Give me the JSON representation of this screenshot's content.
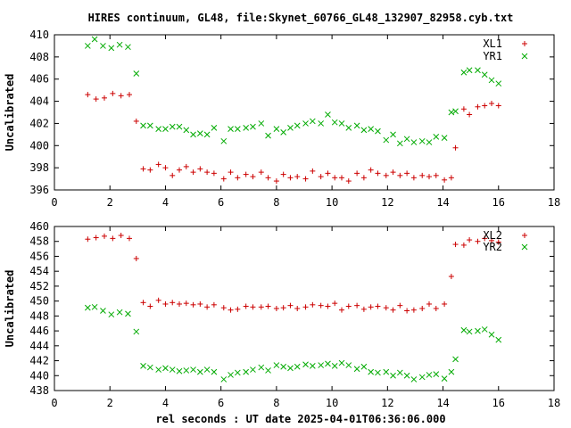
{
  "title": "HIRES continuum, GL48, file:Skynet_60766_GL48_132907_82958.cyb.txt",
  "xlabel": "rel seconds : UT date 2025-04-01T06:36:06.000",
  "chart_data": [
    {
      "type": "scatter",
      "ylabel": "Uncalibrated",
      "xlim": [
        0,
        18
      ],
      "ylim": [
        396,
        410
      ],
      "xticks": [
        0,
        2,
        4,
        6,
        8,
        10,
        12,
        14,
        16,
        18
      ],
      "yticks": [
        396,
        398,
        400,
        402,
        404,
        406,
        408,
        410
      ],
      "legend_position": "top-right",
      "series": [
        {
          "name": "XL1",
          "color": "#cc0000",
          "marker": "plus",
          "x": [
            1.2,
            1.5,
            1.8,
            2.1,
            2.4,
            2.7,
            2.95,
            3.2,
            3.45,
            3.75,
            4.0,
            4.25,
            4.5,
            4.75,
            5.0,
            5.25,
            5.5,
            5.75,
            6.1,
            6.35,
            6.6,
            6.9,
            7.15,
            7.45,
            7.7,
            8.0,
            8.25,
            8.5,
            8.75,
            9.05,
            9.3,
            9.6,
            9.85,
            10.1,
            10.35,
            10.6,
            10.9,
            11.15,
            11.4,
            11.65,
            11.95,
            12.2,
            12.45,
            12.7,
            12.95,
            13.25,
            13.5,
            13.75,
            14.05,
            14.3,
            14.45,
            14.75,
            14.95,
            15.25,
            15.5,
            15.75,
            16.0
          ],
          "y": [
            404.6,
            404.2,
            404.3,
            404.7,
            404.5,
            404.6,
            402.2,
            397.9,
            397.8,
            398.3,
            398.0,
            397.3,
            397.8,
            398.1,
            397.6,
            397.9,
            397.6,
            397.5,
            397.0,
            397.6,
            397.1,
            397.4,
            397.2,
            397.6,
            397.1,
            396.8,
            397.4,
            397.1,
            397.2,
            397.0,
            397.7,
            397.2,
            397.5,
            397.1,
            397.1,
            396.8,
            397.5,
            397.1,
            397.8,
            397.5,
            397.3,
            397.6,
            397.3,
            397.5,
            397.1,
            397.3,
            397.2,
            397.3,
            396.9,
            397.1,
            399.8,
            403.3,
            402.8,
            403.5,
            403.6,
            403.8,
            403.6
          ]
        },
        {
          "name": "YR1",
          "color": "#00aa00",
          "marker": "cross",
          "x": [
            1.2,
            1.45,
            1.75,
            2.05,
            2.35,
            2.65,
            2.95,
            3.2,
            3.45,
            3.75,
            4.0,
            4.25,
            4.5,
            4.75,
            5.0,
            5.25,
            5.5,
            5.75,
            6.1,
            6.35,
            6.6,
            6.9,
            7.15,
            7.45,
            7.7,
            8.0,
            8.25,
            8.5,
            8.75,
            9.05,
            9.3,
            9.6,
            9.85,
            10.1,
            10.35,
            10.6,
            10.9,
            11.15,
            11.4,
            11.65,
            11.95,
            12.2,
            12.45,
            12.7,
            12.95,
            13.25,
            13.5,
            13.75,
            14.05,
            14.3,
            14.45,
            14.75,
            14.95,
            15.25,
            15.5,
            15.75,
            16.0
          ],
          "y": [
            409.0,
            409.6,
            409.0,
            408.8,
            409.1,
            408.9,
            406.5,
            401.8,
            401.8,
            401.5,
            401.5,
            401.7,
            401.7,
            401.4,
            401.0,
            401.1,
            401.0,
            401.6,
            400.4,
            401.5,
            401.5,
            401.6,
            401.7,
            402.0,
            400.9,
            401.5,
            401.2,
            401.6,
            401.8,
            402.0,
            402.2,
            402.0,
            402.8,
            402.1,
            402.0,
            401.6,
            401.8,
            401.4,
            401.5,
            401.3,
            400.5,
            401.0,
            400.2,
            400.6,
            400.3,
            400.4,
            400.3,
            400.8,
            400.7,
            403.0,
            403.1,
            406.6,
            406.8,
            406.8,
            406.4,
            405.9,
            405.6
          ]
        }
      ]
    },
    {
      "type": "scatter",
      "ylabel": "Uncalibrated",
      "xlim": [
        0,
        18
      ],
      "ylim": [
        438,
        460
      ],
      "xticks": [
        0,
        2,
        4,
        6,
        8,
        10,
        12,
        14,
        16,
        18
      ],
      "yticks": [
        438,
        440,
        442,
        444,
        446,
        448,
        450,
        452,
        454,
        456,
        458,
        460
      ],
      "legend_position": "top-right",
      "series": [
        {
          "name": "XL2",
          "color": "#cc0000",
          "marker": "plus",
          "x": [
            1.2,
            1.5,
            1.8,
            2.1,
            2.4,
            2.7,
            2.95,
            3.2,
            3.45,
            3.75,
            4.0,
            4.25,
            4.5,
            4.75,
            5.0,
            5.25,
            5.5,
            5.75,
            6.1,
            6.35,
            6.6,
            6.9,
            7.15,
            7.45,
            7.7,
            8.0,
            8.25,
            8.5,
            8.75,
            9.05,
            9.3,
            9.6,
            9.85,
            10.1,
            10.35,
            10.6,
            10.9,
            11.15,
            11.4,
            11.65,
            11.95,
            12.2,
            12.45,
            12.7,
            12.95,
            13.25,
            13.5,
            13.75,
            14.05,
            14.3,
            14.45,
            14.75,
            14.95,
            15.25,
            15.5,
            15.75,
            16.0
          ],
          "y": [
            458.3,
            458.5,
            458.7,
            458.4,
            458.8,
            458.4,
            455.7,
            449.8,
            449.3,
            450.1,
            449.6,
            449.8,
            449.6,
            449.7,
            449.5,
            449.6,
            449.2,
            449.5,
            449.1,
            448.8,
            448.9,
            449.3,
            449.2,
            449.2,
            449.3,
            449.0,
            449.1,
            449.4,
            449.0,
            449.2,
            449.5,
            449.4,
            449.3,
            449.7,
            448.8,
            449.3,
            449.4,
            448.9,
            449.2,
            449.3,
            449.1,
            448.8,
            449.4,
            448.7,
            448.8,
            449.0,
            449.6,
            449.0,
            449.6,
            453.3,
            457.6,
            457.5,
            458.2,
            458.0,
            458.4,
            458.1,
            457.9
          ],
          "x_note_hidden": null
        },
        {
          "name": "YR2",
          "color": "#00aa00",
          "marker": "cross",
          "x": [
            1.2,
            1.45,
            1.75,
            2.05,
            2.35,
            2.65,
            2.95,
            3.2,
            3.45,
            3.75,
            4.0,
            4.25,
            4.5,
            4.75,
            5.0,
            5.25,
            5.5,
            5.75,
            6.1,
            6.35,
            6.6,
            6.9,
            7.15,
            7.45,
            7.7,
            8.0,
            8.25,
            8.5,
            8.75,
            9.05,
            9.3,
            9.6,
            9.85,
            10.1,
            10.35,
            10.6,
            10.9,
            11.15,
            11.4,
            11.65,
            11.95,
            12.2,
            12.45,
            12.7,
            12.95,
            13.25,
            13.5,
            13.75,
            14.05,
            14.3,
            14.45,
            14.75,
            14.95,
            15.25,
            15.5,
            15.75,
            16.0
          ],
          "y": [
            449.1,
            449.2,
            448.7,
            448.2,
            448.5,
            448.3,
            445.9,
            441.3,
            441.1,
            440.8,
            441.0,
            440.8,
            440.6,
            440.7,
            440.8,
            440.5,
            440.8,
            440.5,
            439.5,
            440.1,
            440.4,
            440.5,
            440.8,
            441.1,
            440.7,
            441.4,
            441.2,
            441.0,
            441.2,
            441.5,
            441.3,
            441.4,
            441.6,
            441.3,
            441.7,
            441.4,
            440.9,
            441.2,
            440.5,
            440.4,
            440.5,
            440.0,
            440.4,
            440.0,
            439.5,
            439.8,
            440.1,
            440.2,
            439.6,
            440.5,
            442.2,
            446.1,
            445.9,
            446.0,
            446.2,
            445.5,
            444.8
          ]
        }
      ]
    }
  ]
}
